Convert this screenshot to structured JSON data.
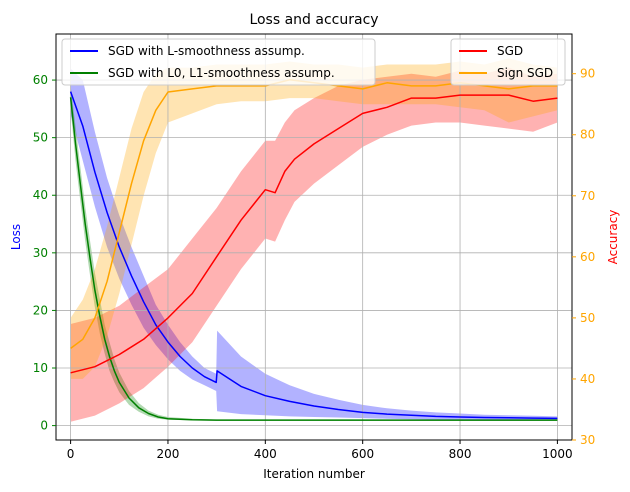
{
  "chart_data": {
    "type": "line",
    "title": "Loss and accuracy",
    "xlabel": "Iteration number",
    "ylabel_left": "Loss",
    "ylabel_right": "Accuracy",
    "xlim": [
      -30,
      1030
    ],
    "ylim_left": [
      -2.5,
      68
    ],
    "ylim_right": [
      30,
      96.5
    ],
    "xticks": [
      0,
      200,
      400,
      600,
      800,
      1000
    ],
    "yticks_left": [
      0,
      10,
      20,
      30,
      40,
      50,
      60
    ],
    "yticks_right": [
      30,
      40,
      50,
      60,
      70,
      80,
      90
    ],
    "grid": true,
    "colors": {
      "left_ticks": "#008000",
      "left_label": "#0000ff",
      "right_ticks": "#ffa500",
      "right_label": "#ff0000"
    },
    "legend_left": {
      "placement": "upper-left",
      "entries": [
        "SGD with L-smoothness assump.",
        "SGD with L0, L1-smoothness assump."
      ]
    },
    "legend_right": {
      "placement": "upper-right",
      "entries": [
        "SGD",
        "Sign SGD"
      ]
    },
    "series": [
      {
        "name": "SGD with L-smoothness assump.",
        "axis": "left",
        "color": "#0000ff",
        "x": [
          0,
          25,
          50,
          75,
          100,
          125,
          150,
          175,
          200,
          225,
          250,
          275,
          299,
          301,
          350,
          400,
          450,
          500,
          550,
          600,
          650,
          700,
          750,
          800,
          850,
          900,
          950,
          1000
        ],
        "y": [
          58,
          52,
          44,
          37,
          31,
          26,
          21.5,
          17.5,
          14.5,
          12,
          10,
          8.5,
          7.5,
          9.5,
          6.8,
          5.2,
          4.2,
          3.4,
          2.8,
          2.3,
          2.0,
          1.8,
          1.6,
          1.5,
          1.4,
          1.35,
          1.3,
          1.25
        ],
        "lower": [
          54,
          46,
          38,
          31,
          25.5,
          21,
          17,
          14,
          11.5,
          9.5,
          8,
          7,
          6,
          2.5,
          2.0,
          1.8,
          1.6,
          1.5,
          1.4,
          1.3,
          1.2,
          1.1,
          1.05,
          1.0,
          1.0,
          1.0,
          1.0,
          1.0
        ],
        "upper": [
          62,
          60,
          51,
          43,
          36.5,
          31,
          26,
          21,
          17.5,
          14.5,
          12,
          10,
          9,
          16.5,
          12,
          9,
          7,
          5.5,
          4.5,
          3.6,
          3.0,
          2.6,
          2.3,
          2.1,
          1.9,
          1.8,
          1.7,
          1.6
        ]
      },
      {
        "name": "SGD with L0, L1-smoothness assump.",
        "axis": "left",
        "color": "#008000",
        "x": [
          0,
          10,
          20,
          30,
          40,
          50,
          60,
          70,
          80,
          90,
          100,
          120,
          140,
          160,
          180,
          200,
          250,
          300,
          400,
          500,
          600,
          700,
          800,
          900,
          1000
        ],
        "y": [
          57,
          49,
          42,
          35,
          29,
          23.5,
          19,
          15,
          12,
          9.5,
          7.5,
          4.8,
          3.1,
          2.1,
          1.5,
          1.2,
          1.0,
          0.95,
          0.95,
          0.95,
          0.95,
          0.95,
          0.95,
          0.95,
          0.95
        ],
        "lower": [
          55,
          46,
          39,
          32,
          26,
          20.5,
          16,
          12.5,
          9.5,
          7.5,
          5.8,
          3.6,
          2.4,
          1.6,
          1.2,
          1.0,
          0.9,
          0.85,
          0.85,
          0.85,
          0.85,
          0.85,
          0.85,
          0.85,
          0.85
        ],
        "upper": [
          59,
          52,
          45,
          38,
          32,
          26.5,
          22,
          17.5,
          14.5,
          11.5,
          9.2,
          6.0,
          3.9,
          2.6,
          1.9,
          1.5,
          1.2,
          1.05,
          1.05,
          1.05,
          1.05,
          1.05,
          1.05,
          1.05,
          1.05
        ]
      },
      {
        "name": "SGD",
        "axis": "right",
        "color": "#ff0000",
        "x": [
          0,
          50,
          100,
          150,
          200,
          250,
          300,
          350,
          400,
          420,
          440,
          460,
          500,
          550,
          600,
          650,
          700,
          750,
          800,
          850,
          900,
          950,
          1000
        ],
        "y": [
          41,
          42,
          44,
          46.5,
          50,
          54,
          60,
          66,
          71,
          70.5,
          74,
          76,
          78.5,
          81,
          83.5,
          84.5,
          86,
          86,
          86.5,
          86.5,
          86.5,
          85.5,
          86
        ],
        "lower": [
          33,
          34,
          36,
          38.5,
          42,
          46,
          52,
          58,
          63,
          62.5,
          66,
          69,
          72,
          75,
          78,
          80,
          81.5,
          82,
          82,
          81.5,
          81,
          80.5,
          82
        ],
        "upper": [
          49,
          50,
          52,
          55,
          58,
          63,
          68,
          74,
          79,
          79,
          82,
          84,
          86,
          88,
          89,
          89.5,
          90,
          89.5,
          90.5,
          90,
          91,
          89.5,
          90
        ]
      },
      {
        "name": "Sign SGD",
        "axis": "right",
        "color": "#ffa500",
        "x": [
          0,
          25,
          50,
          75,
          100,
          125,
          150,
          175,
          200,
          250,
          300,
          350,
          400,
          450,
          500,
          550,
          600,
          650,
          700,
          750,
          800,
          850,
          900,
          950,
          1000
        ],
        "y": [
          45,
          46.5,
          50,
          56,
          64,
          72,
          79,
          84,
          87,
          87.5,
          88,
          88,
          88,
          89,
          88.5,
          88,
          87.5,
          88.5,
          88,
          88,
          88.5,
          88,
          87.5,
          88,
          88
        ],
        "lower": [
          40,
          40,
          42,
          47,
          54,
          62,
          70,
          77,
          82,
          83.5,
          85,
          85.5,
          85.5,
          86,
          86,
          85.5,
          85,
          85,
          85,
          85,
          84.5,
          84,
          82,
          83,
          84
        ],
        "upper": [
          50,
          53,
          58,
          65,
          73,
          81,
          87,
          90,
          91,
          91,
          91.5,
          91.5,
          91.5,
          92,
          91.5,
          91.5,
          91,
          91.5,
          91.5,
          91.5,
          92,
          91.5,
          92.5,
          91.5,
          91
        ]
      }
    ]
  }
}
